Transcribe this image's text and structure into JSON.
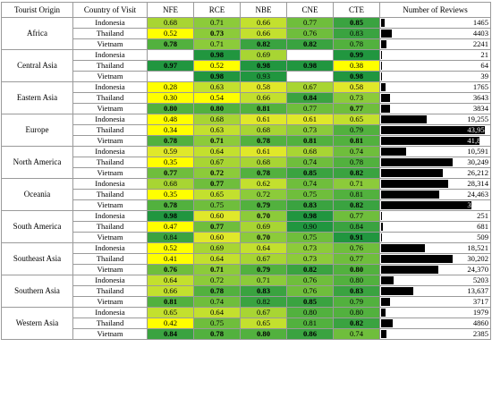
{
  "headers": [
    "Tourist Origin",
    "Country of Visit",
    "NFE",
    "RCE",
    "NBE",
    "CNE",
    "CTE",
    "Number of Reviews"
  ],
  "max_reviews": 43954,
  "groups": [
    {
      "origin": "Africa",
      "rows": [
        {
          "country": "Indonesia",
          "vals": [
            "0.68",
            "0.71",
            "0.66",
            "0.77",
            "0.85"
          ],
          "bold": [
            false,
            false,
            false,
            false,
            true
          ],
          "reviews": 1465,
          "reviews_label": "1465"
        },
        {
          "country": "Thailand",
          "vals": [
            "0.52",
            "0.73",
            "0.66",
            "0.76",
            "0.83"
          ],
          "bold": [
            false,
            true,
            false,
            false,
            false
          ],
          "reviews": 4403,
          "reviews_label": "4403"
        },
        {
          "country": "Vietnam",
          "vals": [
            "0.78",
            "0.71",
            "0.82",
            "0.82",
            "0.78"
          ],
          "bold": [
            true,
            false,
            true,
            true,
            false
          ],
          "reviews": 2241,
          "reviews_label": "2241"
        }
      ]
    },
    {
      "origin": "Central Asia",
      "rows": [
        {
          "country": "Indonesia",
          "vals": [
            "",
            "0.98",
            "0.69",
            "",
            "0.99"
          ],
          "bold": [
            false,
            true,
            false,
            false,
            true
          ],
          "reviews": 21,
          "reviews_label": "21"
        },
        {
          "country": "Thailand",
          "vals": [
            "0.97",
            "0.52",
            "0.98",
            "0.98",
            "0.38"
          ],
          "bold": [
            true,
            false,
            true,
            true,
            false
          ],
          "reviews": 64,
          "reviews_label": "64"
        },
        {
          "country": "Vietnam",
          "vals": [
            "",
            "0.98",
            "0.93",
            "",
            "0.98"
          ],
          "bold": [
            false,
            true,
            false,
            false,
            true
          ],
          "reviews": 39,
          "reviews_label": "39"
        }
      ]
    },
    {
      "origin": "Eastern Asia",
      "rows": [
        {
          "country": "Indonesia",
          "vals": [
            "0.28",
            "0.63",
            "0.58",
            "0.67",
            "0.58"
          ],
          "bold": [
            false,
            false,
            false,
            false,
            false
          ],
          "reviews": 1765,
          "reviews_label": "1765"
        },
        {
          "country": "Thailand",
          "vals": [
            "0.30",
            "0.54",
            "0.66",
            "0.84",
            "0.73"
          ],
          "bold": [
            false,
            false,
            false,
            true,
            false
          ],
          "reviews": 3643,
          "reviews_label": "3643"
        },
        {
          "country": "Vietnam",
          "vals": [
            "0.80",
            "0.80",
            "0.81",
            "0.77",
            "0.77"
          ],
          "bold": [
            true,
            true,
            true,
            false,
            true
          ],
          "reviews": 3834,
          "reviews_label": "3834"
        }
      ]
    },
    {
      "origin": "Europe",
      "rows": [
        {
          "country": "Indonesia",
          "vals": [
            "0.48",
            "0.68",
            "0.61",
            "0.61",
            "0.65"
          ],
          "bold": [
            false,
            false,
            false,
            false,
            false
          ],
          "reviews": 19255,
          "reviews_label": "19,255"
        },
        {
          "country": "Thailand",
          "vals": [
            "0.34",
            "0.63",
            "0.68",
            "0.73",
            "0.79"
          ],
          "bold": [
            false,
            false,
            false,
            false,
            false
          ],
          "reviews": 43954,
          "reviews_label": "43,954"
        },
        {
          "country": "Vietnam",
          "vals": [
            "0.78",
            "0.71",
            "0.78",
            "0.81",
            "0.81"
          ],
          "bold": [
            true,
            true,
            true,
            true,
            true
          ],
          "reviews": 41865,
          "reviews_label": "41,865"
        }
      ]
    },
    {
      "origin": "North America",
      "rows": [
        {
          "country": "Indonesia",
          "vals": [
            "0.59",
            "0.64",
            "0.61",
            "0.68",
            "0.74"
          ],
          "bold": [
            false,
            false,
            false,
            false,
            false
          ],
          "reviews": 10591,
          "reviews_label": "10,591"
        },
        {
          "country": "Thailand",
          "vals": [
            "0.35",
            "0.67",
            "0.68",
            "0.74",
            "0.78"
          ],
          "bold": [
            false,
            false,
            false,
            false,
            false
          ],
          "reviews": 30249,
          "reviews_label": "30,249"
        },
        {
          "country": "Vietnam",
          "vals": [
            "0.77",
            "0.72",
            "0.78",
            "0.85",
            "0.82"
          ],
          "bold": [
            true,
            true,
            true,
            true,
            true
          ],
          "reviews": 26212,
          "reviews_label": "26,212"
        }
      ]
    },
    {
      "origin": "Oceania",
      "rows": [
        {
          "country": "Indonesia",
          "vals": [
            "0.68",
            "0.77",
            "0.62",
            "0.74",
            "0.71"
          ],
          "bold": [
            false,
            true,
            false,
            false,
            false
          ],
          "reviews": 28314,
          "reviews_label": "28,314"
        },
        {
          "country": "Thailand",
          "vals": [
            "0.35",
            "0.65",
            "0.72",
            "0.75",
            "0.81"
          ],
          "bold": [
            false,
            false,
            false,
            false,
            false
          ],
          "reviews": 24463,
          "reviews_label": "24,463"
        },
        {
          "country": "Vietnam",
          "vals": [
            "0.78",
            "0.75",
            "0.79",
            "0.83",
            "0.82"
          ],
          "bold": [
            true,
            false,
            true,
            true,
            true
          ],
          "reviews": 38317,
          "reviews_label": "38,317"
        }
      ]
    },
    {
      "origin": "South America",
      "rows": [
        {
          "country": "Indonesia",
          "vals": [
            "0.98",
            "0.60",
            "0.70",
            "0.98",
            "0.77"
          ],
          "bold": [
            true,
            false,
            true,
            true,
            false
          ],
          "reviews": 251,
          "reviews_label": "251"
        },
        {
          "country": "Thailand",
          "vals": [
            "0.47",
            "0.77",
            "0.69",
            "0.90",
            "0.84"
          ],
          "bold": [
            false,
            true,
            false,
            false,
            false
          ],
          "reviews": 681,
          "reviews_label": "681"
        },
        {
          "country": "Vietnam",
          "vals": [
            "0.84",
            "0.60",
            "0.70",
            "0.75",
            "0.91"
          ],
          "bold": [
            false,
            false,
            true,
            false,
            true
          ],
          "reviews": 509,
          "reviews_label": "509"
        }
      ]
    },
    {
      "origin": "Southeast Asia",
      "rows": [
        {
          "country": "Indonesia",
          "vals": [
            "0.52",
            "0.69",
            "0.64",
            "0.73",
            "0.76"
          ],
          "bold": [
            false,
            false,
            false,
            false,
            false
          ],
          "reviews": 18521,
          "reviews_label": "18,521"
        },
        {
          "country": "Thailand",
          "vals": [
            "0.41",
            "0.64",
            "0.67",
            "0.73",
            "0.77"
          ],
          "bold": [
            false,
            false,
            false,
            false,
            false
          ],
          "reviews": 30202,
          "reviews_label": "30,202"
        },
        {
          "country": "Vietnam",
          "vals": [
            "0.76",
            "0.71",
            "0.79",
            "0.82",
            "0.80"
          ],
          "bold": [
            true,
            true,
            true,
            true,
            true
          ],
          "reviews": 24370,
          "reviews_label": "24,370"
        }
      ]
    },
    {
      "origin": "Southern Asia",
      "rows": [
        {
          "country": "Indonesia",
          "vals": [
            "0.64",
            "0.72",
            "0.71",
            "0.76",
            "0.80"
          ],
          "bold": [
            false,
            false,
            false,
            false,
            false
          ],
          "reviews": 5203,
          "reviews_label": "5203"
        },
        {
          "country": "Thailand",
          "vals": [
            "0.66",
            "0.78",
            "0.83",
            "0.76",
            "0.83"
          ],
          "bold": [
            false,
            true,
            true,
            false,
            true
          ],
          "reviews": 13637,
          "reviews_label": "13,637"
        },
        {
          "country": "Vietnam",
          "vals": [
            "0.81",
            "0.74",
            "0.82",
            "0.85",
            "0.79"
          ],
          "bold": [
            true,
            false,
            false,
            true,
            false
          ],
          "reviews": 3717,
          "reviews_label": "3717"
        }
      ]
    },
    {
      "origin": "Western Asia",
      "rows": [
        {
          "country": "Indonesia",
          "vals": [
            "0.65",
            "0.64",
            "0.67",
            "0.80",
            "0.80"
          ],
          "bold": [
            false,
            false,
            false,
            false,
            false
          ],
          "reviews": 1979,
          "reviews_label": "1979"
        },
        {
          "country": "Thailand",
          "vals": [
            "0.42",
            "0.75",
            "0.65",
            "0.81",
            "0.82"
          ],
          "bold": [
            false,
            false,
            false,
            false,
            true
          ],
          "reviews": 4860,
          "reviews_label": "4860"
        },
        {
          "country": "Vietnam",
          "vals": [
            "0.84",
            "0.78",
            "0.80",
            "0.86",
            "0.74"
          ],
          "bold": [
            true,
            true,
            true,
            true,
            false
          ],
          "reviews": 2385,
          "reviews_label": "2385"
        }
      ]
    }
  ]
}
